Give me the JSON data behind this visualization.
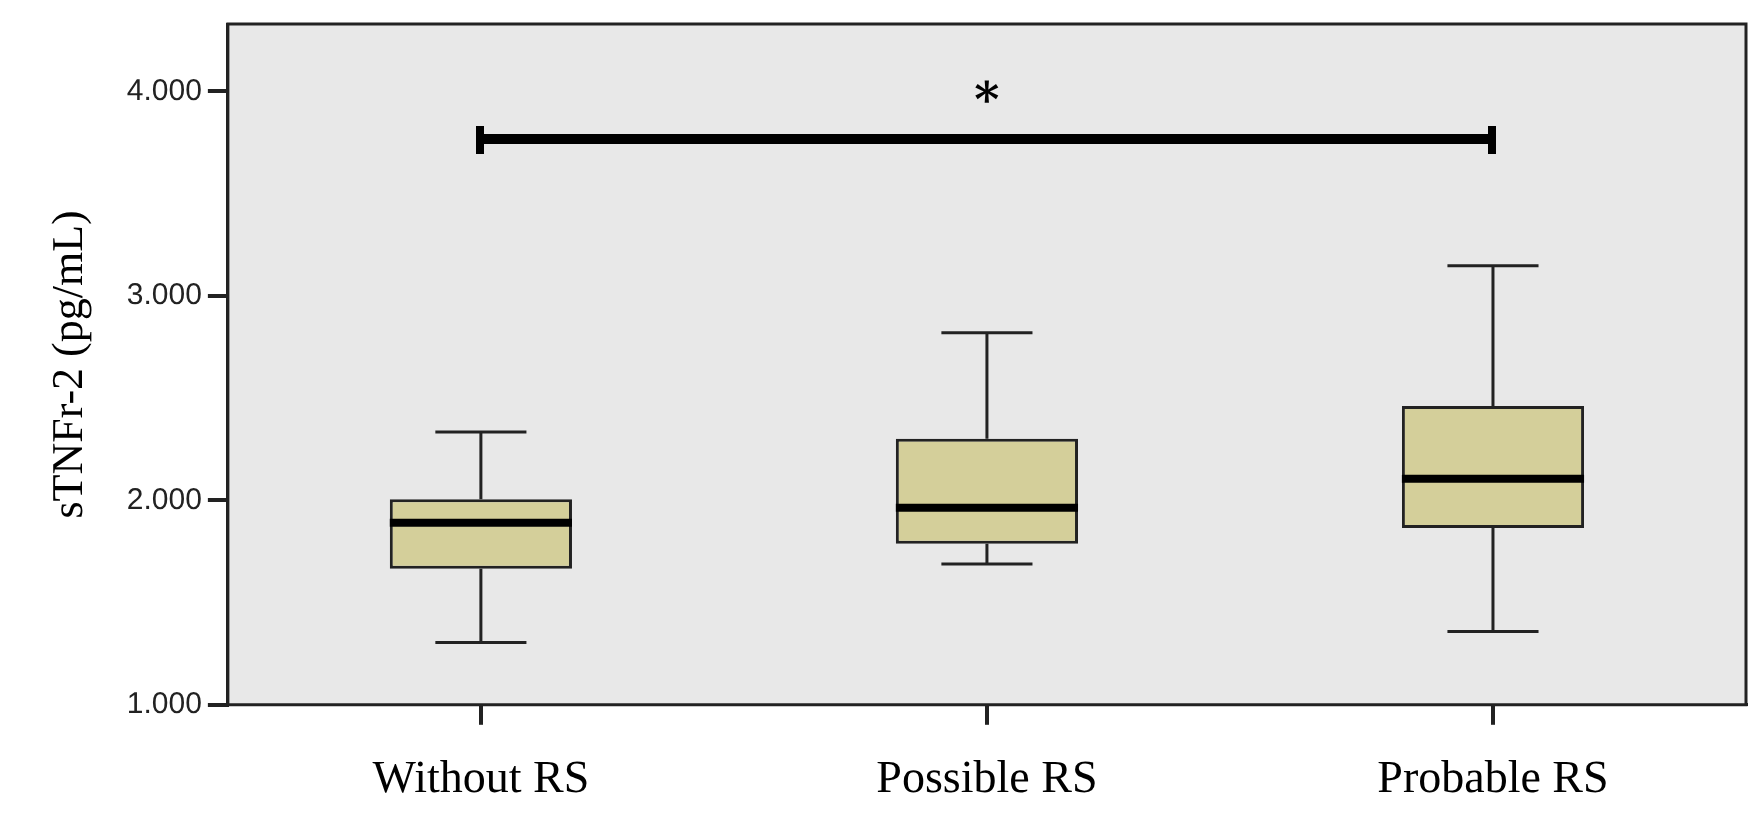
{
  "chart_data": {
    "type": "box",
    "ylabel": "sTNFr-2 (pg/mL)",
    "categories": [
      "Without RS",
      "Possible RS",
      "Probable RS"
    ],
    "boxes": [
      {
        "low": 1305,
        "q1": 1666,
        "median": 1891,
        "q3": 2006,
        "high": 2334
      },
      {
        "low": 1689,
        "q1": 1788,
        "median": 1964,
        "q3": 2301,
        "high": 2820
      },
      {
        "low": 1359,
        "q1": 1865,
        "median": 2106,
        "q3": 2462,
        "high": 3147
      }
    ],
    "color": "#d4cf9a",
    "ylim": [
      1000,
      4330
    ],
    "yticks": [
      {
        "value": 1000,
        "label": "1.000"
      },
      {
        "value": 2000,
        "label": "2.000"
      },
      {
        "value": 3000,
        "label": "3.000"
      },
      {
        "value": 4000,
        "label": "4.000"
      }
    ],
    "grid": false,
    "legend": false,
    "annotations": [
      "*"
    ]
  }
}
